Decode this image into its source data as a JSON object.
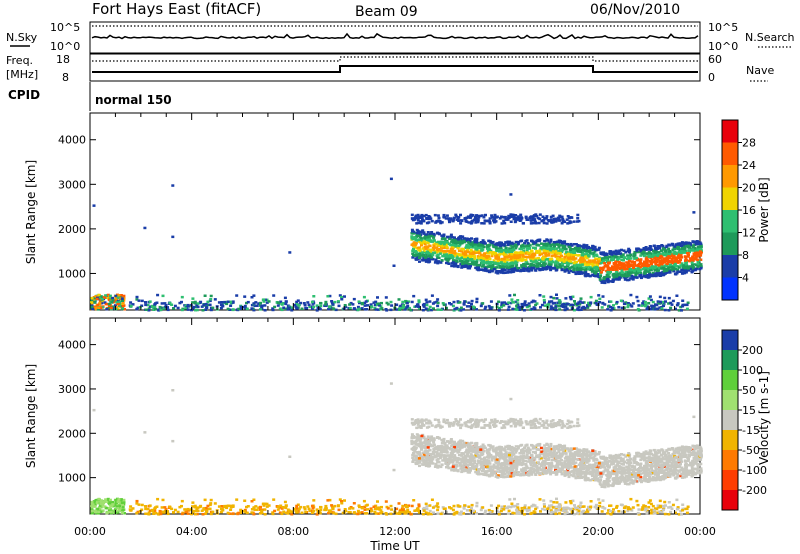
{
  "header": {
    "station": "Fort Hays East (fitACF)",
    "beam": "Beam 09",
    "date": "06/Nov/2010"
  },
  "top_panel": {
    "left_label": "N.Sky",
    "left_ticks": [
      "10^5",
      "10^0"
    ],
    "right_ticks": [
      "10^5",
      "10^0"
    ],
    "right_label": "N.Search"
  },
  "freq_panel": {
    "left_label_1": "Freq.",
    "left_label_2": "[MHz]",
    "left_ticks": [
      "18",
      "8"
    ],
    "right_ticks": [
      "60",
      "0"
    ],
    "right_label": "Nave"
  },
  "cpid": {
    "label": "CPID",
    "value": "normal 150"
  },
  "axes": {
    "ylabel": "Slant Range [km]",
    "yticks": [
      "4000",
      "3000",
      "2000",
      "1000"
    ],
    "xticks": [
      "00:00",
      "04:00",
      "08:00",
      "12:00",
      "16:00",
      "20:00",
      "00:00"
    ],
    "xlabel": "Time UT"
  },
  "colorbars": {
    "power": {
      "label": "Power [dB]",
      "ticks": [
        "28",
        "24",
        "20",
        "16",
        "12",
        "8",
        "4"
      ],
      "colors": [
        "#e8000b",
        "#ff5a00",
        "#ff9900",
        "#f0d400",
        "#2fbf71",
        "#1e9a5a",
        "#1a3da8",
        "#0033ff"
      ]
    },
    "velocity": {
      "label": "Velocity [m s-1]",
      "ticks": [
        "200",
        "100",
        "50",
        "15",
        "-15",
        "-50",
        "-100",
        "-200"
      ],
      "colors": [
        "#1a3da8",
        "#1e9a5a",
        "#5fcf3a",
        "#a0e070",
        "#c8c8c0",
        "#f0b400",
        "#ff7a00",
        "#ff3d00",
        "#e8000b"
      ]
    }
  },
  "chart_data": {
    "type": "heatmap",
    "x_unit": "hours UT",
    "xlim": [
      0,
      24
    ],
    "ylim": [
      180,
      4600
    ],
    "regions": [
      {
        "name": "near-range scatter",
        "x": [
          0.0,
          1.3
        ],
        "y": [
          200,
          550
        ],
        "power_db": [
          4,
          28
        ],
        "velocity": [
          15,
          100
        ]
      },
      {
        "name": "ground scatter band",
        "x": [
          12.6,
          24.0
        ],
        "y": [
          800,
          2000
        ],
        "power_db": [
          4,
          28
        ],
        "velocity": [
          -15,
          15
        ]
      },
      {
        "name": "upper band",
        "x": [
          12.6,
          19.2
        ],
        "y": [
          2150,
          2350
        ],
        "power_db": [
          4,
          8
        ],
        "velocity": [
          -15,
          15
        ]
      },
      {
        "name": "low-range ionospheric scatter",
        "x": [
          1.5,
          23.5
        ],
        "y": [
          200,
          550
        ],
        "power_db": [
          4,
          12
        ],
        "velocity": [
          -50,
          -15
        ]
      }
    ]
  }
}
